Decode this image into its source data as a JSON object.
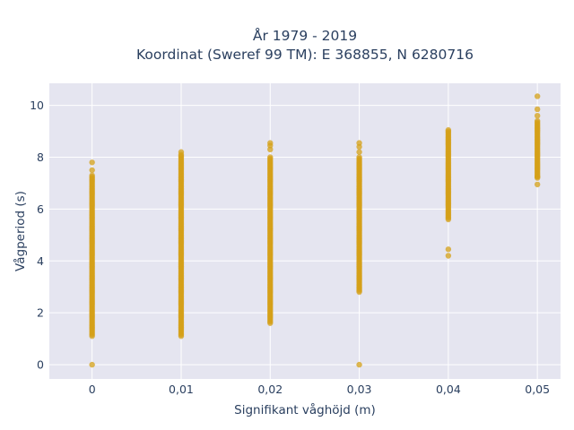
{
  "chart_data": {
    "type": "scatter",
    "title_line1": "År 1979 - 2019",
    "title_line2": "Koordinat (Sweref 99 TM): E 368855, N 6280716",
    "xlabel": "Signifikant våghöjd (m)",
    "ylabel": "Vågperiod (s)",
    "xlim": [
      -0.0013,
      0.0052
    ],
    "ylim": [
      -0.55,
      10.85
    ],
    "x_ticks": [
      0,
      0.01,
      0.02,
      0.03,
      0.04,
      0.05
    ],
    "x_tick_labels": [
      "0",
      "0,01",
      "0,02",
      "0,03",
      "0,04",
      "0,05"
    ],
    "y_ticks": [
      0,
      2,
      4,
      6,
      8,
      10
    ],
    "y_tick_labels": [
      "0",
      "2",
      "4",
      "6",
      "8",
      "10"
    ],
    "grid": true,
    "marker_color": "#D4A017",
    "plot_background": "#E5E5F0",
    "series": [
      {
        "x": 0.0,
        "band": [
          1.1,
          7.3
        ],
        "extra": [
          0.0,
          7.5,
          7.8
        ]
      },
      {
        "x": 0.01,
        "band": [
          1.1,
          8.1
        ],
        "extra": [
          8.2
        ]
      },
      {
        "x": 0.02,
        "band": [
          1.6,
          8.0
        ],
        "extra": [
          8.3,
          8.45,
          8.55
        ]
      },
      {
        "x": 0.03,
        "band": [
          2.8,
          8.0
        ],
        "extra": [
          0.0,
          8.2,
          8.4,
          8.55
        ]
      },
      {
        "x": 0.04,
        "band": [
          5.6,
          9.05
        ],
        "extra": [
          4.2,
          4.45
        ]
      },
      {
        "x": 0.05,
        "band": [
          7.2,
          9.4
        ],
        "extra": [
          6.95,
          7.25,
          9.6,
          9.85,
          10.35
        ]
      }
    ]
  }
}
